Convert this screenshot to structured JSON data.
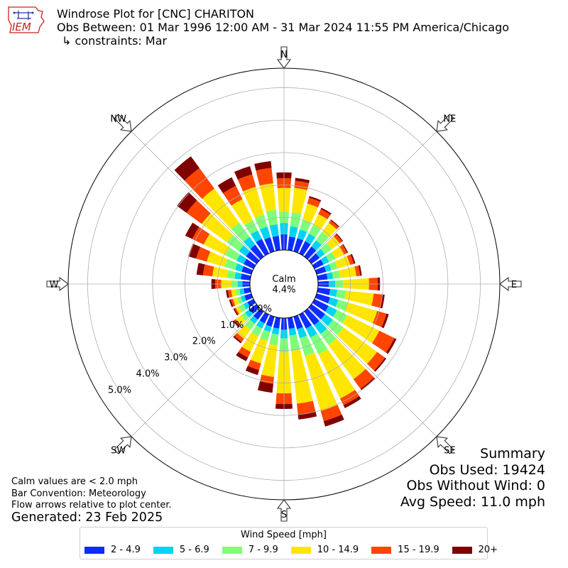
{
  "header": {
    "line1": "Windrose Plot for [CNC] CHARITON",
    "line2": "Obs Between: 01 Mar 1996 12:00 AM - 31 Mar 2024 11:55 PM America/Chicago",
    "line3": "↳ constraints: Mar",
    "logo_text": "IEM"
  },
  "summary": {
    "title": "Summary",
    "obs_used": "Obs Used: 19424",
    "obs_without_wind": "Obs Without Wind: 0",
    "avg_speed": "Avg Speed: 11.0 mph"
  },
  "notes": {
    "calm_note": "Calm values are < 2.0 mph",
    "bar_convention": "Bar Convention: Meteorology",
    "flow_arrows": "Flow arrows relative to plot center.",
    "generated": "Generated: 23 Feb 2025"
  },
  "chart_data": {
    "type": "windrose",
    "calm_label": "Calm",
    "calm_value": "4.4%",
    "radial_ticks": [
      0,
      1,
      2,
      3,
      4,
      5
    ],
    "radial_tick_labels": [
      "0.0%",
      "1.0%",
      "2.0%",
      "3.0%",
      "4.0%",
      "5.0%"
    ],
    "outer_limit": 5.6,
    "direction_labels": [
      "N",
      "NE",
      "E",
      "SE",
      "S",
      "SW",
      "W",
      "NW"
    ],
    "legend_title": "Wind Speed [mph]",
    "speed_bins": [
      "2 - 4.9",
      "5 - 6.9",
      "7 - 9.9",
      "10 - 14.9",
      "15 - 19.9",
      "20+"
    ],
    "colors": [
      "#0d2cff",
      "#00d4f0",
      "#7dff7a",
      "#ffe600",
      "#ff4500",
      "#800000"
    ],
    "directions": [
      {
        "dir": 0,
        "values": [
          0.48,
          0.35,
          0.35,
          0.73,
          0.3,
          0.18
        ]
      },
      {
        "dir": 10,
        "values": [
          0.42,
          0.32,
          0.43,
          0.76,
          0.22,
          0.09
        ]
      },
      {
        "dir": 20,
        "values": [
          0.42,
          0.28,
          0.32,
          0.51,
          0.19,
          0.05
        ]
      },
      {
        "dir": 30,
        "values": [
          0.42,
          0.26,
          0.3,
          0.37,
          0.17,
          0.05
        ]
      },
      {
        "dir": 40,
        "values": [
          0.38,
          0.24,
          0.32,
          0.35,
          0.09,
          0.03
        ]
      },
      {
        "dir": 50,
        "values": [
          0.31,
          0.2,
          0.26,
          0.3,
          0.1,
          0.03
        ]
      },
      {
        "dir": 60,
        "values": [
          0.31,
          0.19,
          0.22,
          0.3,
          0.1,
          0.03
        ]
      },
      {
        "dir": 70,
        "values": [
          0.3,
          0.17,
          0.2,
          0.4,
          0.12,
          0.05
        ]
      },
      {
        "dir": 80,
        "values": [
          0.3,
          0.17,
          0.22,
          0.5,
          0.12,
          0.05
        ]
      },
      {
        "dir": 90,
        "values": [
          0.33,
          0.2,
          0.24,
          0.8,
          0.27,
          0.07
        ]
      },
      {
        "dir": 100,
        "values": [
          0.38,
          0.22,
          0.27,
          0.86,
          0.27,
          0.07
        ]
      },
      {
        "dir": 110,
        "values": [
          0.43,
          0.26,
          0.3,
          0.95,
          0.3,
          0.07
        ]
      },
      {
        "dir": 120,
        "values": [
          0.48,
          0.29,
          0.35,
          1.1,
          0.52,
          0.07
        ]
      },
      {
        "dir": 130,
        "values": [
          0.52,
          0.3,
          0.4,
          1.28,
          0.3,
          0.05
        ]
      },
      {
        "dir": 140,
        "values": [
          0.52,
          0.34,
          0.42,
          1.3,
          0.37,
          0.04
        ]
      },
      {
        "dir": 150,
        "values": [
          0.48,
          0.31,
          0.57,
          1.52,
          0.23,
          0.1
        ]
      },
      {
        "dir": 160,
        "values": [
          0.4,
          0.29,
          0.57,
          1.76,
          0.33,
          0.17
        ]
      },
      {
        "dir": 170,
        "values": [
          0.34,
          0.21,
          0.48,
          1.63,
          0.33,
          0.16
        ]
      },
      {
        "dir": 180,
        "values": [
          0.36,
          0.27,
          0.43,
          1.26,
          0.33,
          0.15
        ]
      },
      {
        "dir": 190,
        "values": [
          0.33,
          0.19,
          0.33,
          0.98,
          0.21,
          0.28
        ]
      },
      {
        "dir": 200,
        "values": [
          0.32,
          0.17,
          0.28,
          0.73,
          0.21,
          0.16
        ]
      },
      {
        "dir": 210,
        "values": [
          0.3,
          0.18,
          0.27,
          0.53,
          0.19,
          0.13
        ]
      },
      {
        "dir": 220,
        "values": [
          0.31,
          0.16,
          0.22,
          0.35,
          0.12,
          0.05
        ]
      },
      {
        "dir": 230,
        "values": [
          0.27,
          0.17,
          0.15,
          0.2,
          0.06,
          0.04
        ]
      },
      {
        "dir": 240,
        "values": [
          0.21,
          0.14,
          0.16,
          0.1,
          0.04,
          0.04
        ]
      },
      {
        "dir": 250,
        "values": [
          0.22,
          0.12,
          0.12,
          0.13,
          0.07,
          0.05
        ]
      },
      {
        "dir": 260,
        "values": [
          0.2,
          0.13,
          0.12,
          0.14,
          0.1,
          0.06
        ]
      },
      {
        "dir": 270,
        "values": [
          0.23,
          0.15,
          0.19,
          0.32,
          0.18,
          0.12
        ]
      },
      {
        "dir": 280,
        "values": [
          0.29,
          0.19,
          0.24,
          0.45,
          0.29,
          0.2
        ]
      },
      {
        "dir": 290,
        "values": [
          0.31,
          0.21,
          0.34,
          0.57,
          0.34,
          0.25
        ]
      },
      {
        "dir": 300,
        "values": [
          0.34,
          0.24,
          0.39,
          0.74,
          0.39,
          0.24
        ]
      },
      {
        "dir": 310,
        "values": [
          0.4,
          0.27,
          0.46,
          0.96,
          0.58,
          0.36
        ]
      },
      {
        "dir": 320,
        "values": [
          0.45,
          0.3,
          0.54,
          1.3,
          0.78,
          0.45
        ]
      },
      {
        "dir": 330,
        "values": [
          0.5,
          0.29,
          0.35,
          0.72,
          0.46,
          0.29
        ]
      },
      {
        "dir": 340,
        "values": [
          0.45,
          0.34,
          0.38,
          0.9,
          0.4,
          0.26
        ]
      },
      {
        "dir": 350,
        "values": [
          0.44,
          0.36,
          0.45,
          0.82,
          0.48,
          0.21
        ]
      }
    ]
  }
}
